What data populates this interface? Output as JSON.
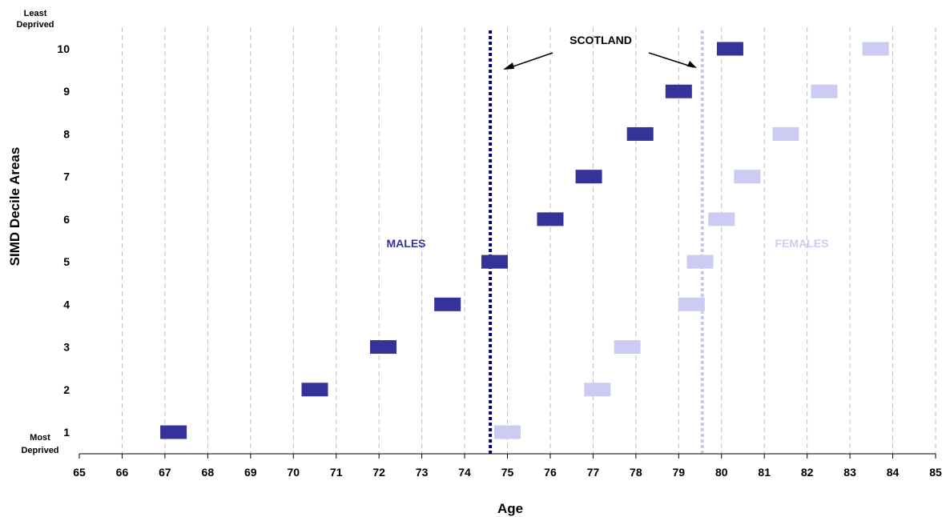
{
  "chart_data": {
    "type": "scatter",
    "xlabel": "Age",
    "ylabel": "SIMD Decile Areas",
    "xlim": [
      65,
      85
    ],
    "ylim": [
      0,
      10.5
    ],
    "x_ticks": [
      "65",
      "66",
      "67",
      "68",
      "69",
      "70",
      "71",
      "72",
      "73",
      "74",
      "75",
      "76",
      "77",
      "78",
      "79",
      "80",
      "81",
      "82",
      "83",
      "84",
      "85"
    ],
    "y_ticks": [
      "1",
      "2",
      "3",
      "4",
      "5",
      "6",
      "7",
      "8",
      "9",
      "10"
    ],
    "y_top_label": [
      "Least",
      "Deprived"
    ],
    "y_bottom_label": [
      "Most",
      "Deprived"
    ],
    "grid": "vertical-dashed",
    "series": [
      {
        "name": "MALES",
        "color": "#333399",
        "points": [
          {
            "decile": 1,
            "age": 67.2
          },
          {
            "decile": 2,
            "age": 70.5
          },
          {
            "decile": 3,
            "age": 72.1
          },
          {
            "decile": 4,
            "age": 73.6
          },
          {
            "decile": 5,
            "age": 74.7
          },
          {
            "decile": 6,
            "age": 76.0
          },
          {
            "decile": 7,
            "age": 76.9
          },
          {
            "decile": 8,
            "age": 78.1
          },
          {
            "decile": 9,
            "age": 79.0
          },
          {
            "decile": 10,
            "age": 80.2
          }
        ]
      },
      {
        "name": "FEMALES",
        "color": "#ccccf2",
        "points": [
          {
            "decile": 1,
            "age": 75.0
          },
          {
            "decile": 2,
            "age": 77.1
          },
          {
            "decile": 3,
            "age": 77.8
          },
          {
            "decile": 4,
            "age": 79.3
          },
          {
            "decile": 5,
            "age": 79.5
          },
          {
            "decile": 6,
            "age": 80.0
          },
          {
            "decile": 7,
            "age": 80.6
          },
          {
            "decile": 8,
            "age": 81.5
          },
          {
            "decile": 9,
            "age": 82.4
          },
          {
            "decile": 10,
            "age": 83.6
          }
        ]
      }
    ],
    "reference_lines": [
      {
        "label": "SCOTLAND",
        "age": 74.6,
        "color": "#000080"
      },
      {
        "label": "SCOTLAND",
        "age": 79.55,
        "color": "#c8c8f0"
      }
    ],
    "annotations": {
      "scotland": "SCOTLAND",
      "males": "MALES",
      "females": "FEMALES"
    }
  }
}
